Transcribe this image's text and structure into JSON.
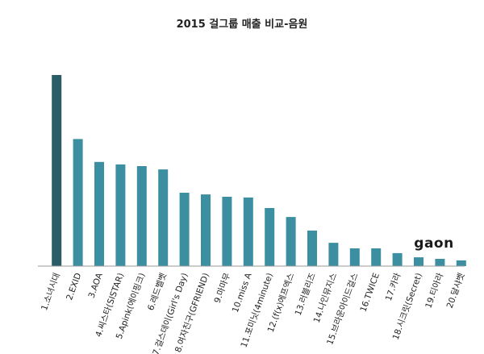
{
  "chart_data": {
    "type": "bar",
    "title": "2015 걸그룹 매출 비교-음원",
    "xlabel": "",
    "ylabel": "",
    "ylim": [
      0,
      100
    ],
    "grid": false,
    "legend": "none",
    "categories": [
      "1.소녀시대",
      "2.EXID",
      "3.AOA",
      "4.씨스타(SISTAR)",
      "5.Apink(에이핑크)",
      "6.레드벨벳",
      "7.걸스데이(Girl's Day)",
      "8.여자친구(GFRIEND)",
      "9.마마무",
      "10.miss A",
      "11.포미닛(4minute)",
      "12.(f(x)에프엑스",
      "13.러블리즈",
      "14.나인뮤지스",
      "15.브라운아이드걸스",
      "16.TWICE",
      "17.카라",
      "18.시크릿(Secret)",
      "19.티아라",
      "20.달샤벳"
    ],
    "values": [
      100,
      66.5,
      54.5,
      53.2,
      52.3,
      50.6,
      38.4,
      37.5,
      36.3,
      35.9,
      30.4,
      25.7,
      18.6,
      12.2,
      9.3,
      9.3,
      6.8,
      4.6,
      3.8,
      3.0
    ],
    "colors": {
      "first_bar": "#2a5d66",
      "bar": "#3c8fa1",
      "axis": "#999999"
    },
    "logo": "gaon"
  }
}
